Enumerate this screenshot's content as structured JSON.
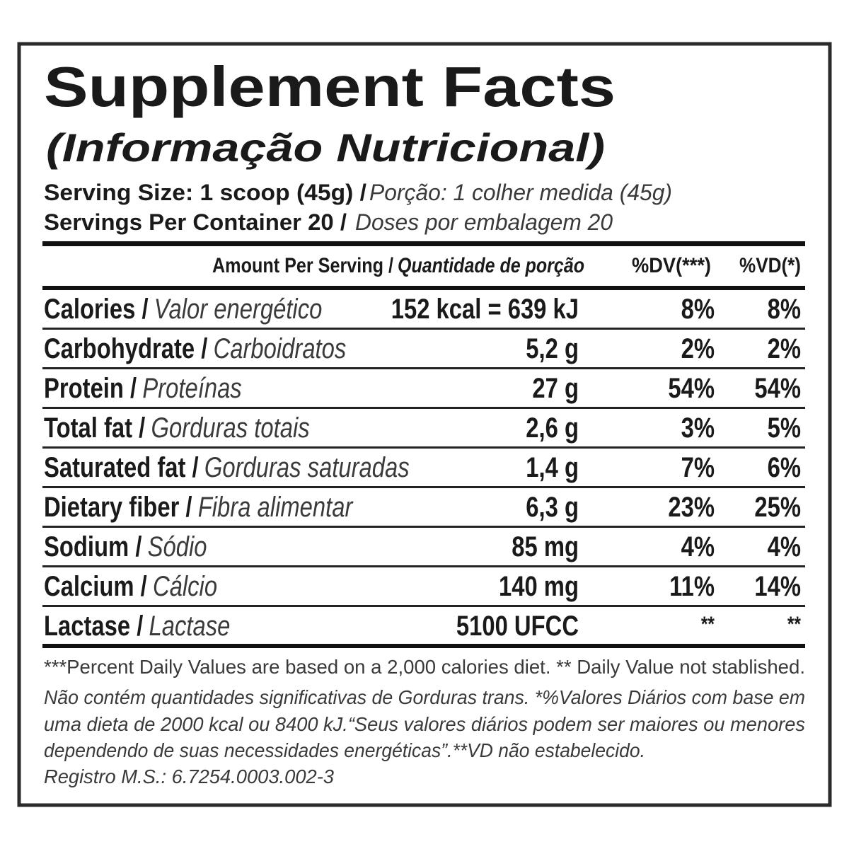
{
  "title": "Supplement Facts",
  "subtitle": "(Informação Nutricional)",
  "serving_size": {
    "en": "Serving Size: 1 scoop (45g) /",
    "pt": "Porção: 1 colher medida (45g)"
  },
  "servings_per_container": {
    "en": "Servings Per Container 20 /",
    "pt": "Doses por embalagem 20"
  },
  "table": {
    "header": {
      "amount_en": "Amount Per Serving /",
      "amount_pt": "Quantidade de porção",
      "dv": "%DV(***)",
      "vd": "%VD(*)"
    },
    "rows": [
      {
        "name": "Calories /",
        "name_pt": "Valor energético",
        "amount": "152 kcal = 639 kJ",
        "dv": "8%",
        "vd": "8%"
      },
      {
        "name": "Carbohydrate /",
        "name_pt": "Carboidratos",
        "amount": "5,2 g",
        "dv": "2%",
        "vd": "2%"
      },
      {
        "name": "Protein /",
        "name_pt": "Proteínas",
        "amount": "27 g",
        "dv": "54%",
        "vd": "54%"
      },
      {
        "name": "Total fat /",
        "name_pt": "Gorduras totais",
        "amount": "2,6 g",
        "dv": "3%",
        "vd": "5%"
      },
      {
        "name": "Saturated fat /",
        "name_pt": "Gorduras saturadas",
        "amount": "1,4 g",
        "dv": "7%",
        "vd": "6%"
      },
      {
        "name": "Dietary fiber /",
        "name_pt": "Fibra alimentar",
        "amount": "6,3 g",
        "dv": "23%",
        "vd": "25%"
      },
      {
        "name": "Sodium /",
        "name_pt": "Sódio",
        "amount": "85 mg",
        "dv": "4%",
        "vd": "4%"
      },
      {
        "name": "Calcium /",
        "name_pt": "Cálcio",
        "amount": "140 mg",
        "dv": "11%",
        "vd": "14%"
      },
      {
        "name": "Lactase /",
        "name_pt": "Lactase",
        "amount": "5100 UFCC",
        "dv": "**",
        "vd": "**"
      }
    ]
  },
  "footnotes": [
    "***Percent Daily Values are based on a 2,000 calories diet. ** Daily Value not stablished.",
    "Não contém quantidades significativas de Gorduras trans. *%Valores Diários com base em",
    "uma dieta de 2000 kcal ou 8400 kJ.“Seus valores diários podem ser maiores ou menores",
    "dependendo de suas necessidades energéticas”.**VD não estabelecido.",
    "Registro M.S.: 6.7254.0003.002-3"
  ]
}
